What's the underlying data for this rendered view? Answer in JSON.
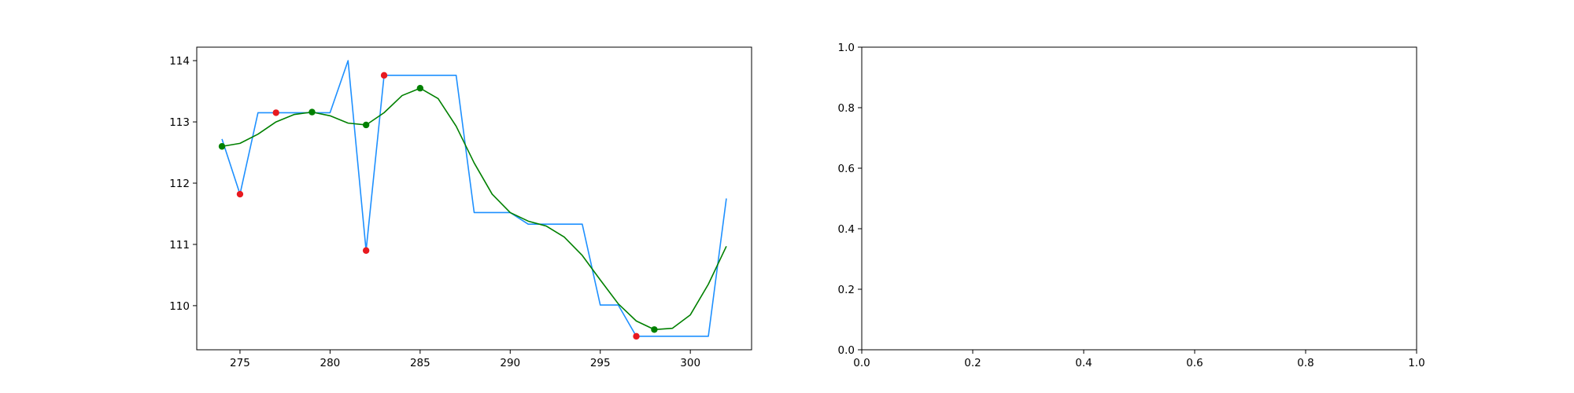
{
  "chart_data": [
    {
      "type": "line",
      "title": "",
      "xlabel": "",
      "ylabel": "",
      "xlim": [
        272.6,
        303.4
      ],
      "ylim": [
        109.28,
        114.22
      ],
      "xticks": [
        275,
        280,
        285,
        290,
        295,
        300
      ],
      "yticks": [
        110,
        111,
        112,
        113,
        114
      ],
      "grid": false,
      "legend": "none",
      "series": [
        {
          "color": "#1e90ff",
          "style": "line",
          "x": [
            274,
            275,
            276,
            277,
            278,
            279,
            280,
            281,
            282,
            283,
            284,
            285,
            286,
            287,
            288,
            289,
            290,
            291,
            292,
            293,
            294,
            295,
            296,
            297,
            298,
            299,
            300,
            301,
            302
          ],
          "y": [
            112.72,
            111.82,
            113.15,
            113.15,
            113.15,
            113.15,
            113.15,
            114.0,
            110.9,
            113.76,
            113.76,
            113.76,
            113.76,
            113.76,
            111.52,
            111.52,
            111.52,
            111.33,
            111.33,
            111.33,
            111.33,
            110.01,
            110.01,
            109.5,
            109.5,
            109.5,
            109.5,
            109.5,
            111.75
          ]
        },
        {
          "color": "#008000",
          "style": "line",
          "x": [
            274,
            275,
            276,
            277,
            278,
            279,
            280,
            281,
            282,
            283,
            284,
            285,
            286,
            287,
            288,
            289,
            290,
            291,
            292,
            293,
            294,
            295,
            296,
            297,
            298,
            299,
            300,
            301,
            302
          ],
          "y": [
            112.6,
            112.65,
            112.8,
            113.0,
            113.12,
            113.16,
            113.1,
            112.98,
            112.95,
            113.15,
            113.43,
            113.55,
            113.38,
            112.93,
            112.33,
            111.82,
            111.52,
            111.38,
            111.3,
            111.12,
            110.82,
            110.42,
            110.03,
            109.75,
            109.61,
            109.63,
            109.85,
            110.35,
            110.97
          ]
        },
        {
          "color": "#e8191f",
          "style": "points",
          "x": [
            275,
            277,
            282,
            283,
            297
          ],
          "y": [
            111.82,
            113.15,
            110.9,
            113.76,
            109.5
          ]
        },
        {
          "color": "#008000",
          "style": "points",
          "x": [
            274,
            279,
            282,
            285,
            298
          ],
          "y": [
            112.6,
            113.16,
            112.95,
            113.55,
            109.61
          ]
        }
      ]
    },
    {
      "type": "line",
      "title": "",
      "xlabel": "",
      "ylabel": "",
      "xlim": [
        0.0,
        1.0
      ],
      "ylim": [
        0.0,
        1.0
      ],
      "xticks": [
        "0.0",
        "0.2",
        "0.4",
        "0.6",
        "0.8",
        "1.0"
      ],
      "yticks": [
        "0.0",
        "0.2",
        "0.4",
        "0.6",
        "0.8",
        "1.0"
      ],
      "grid": false,
      "legend": "none",
      "series": []
    }
  ]
}
